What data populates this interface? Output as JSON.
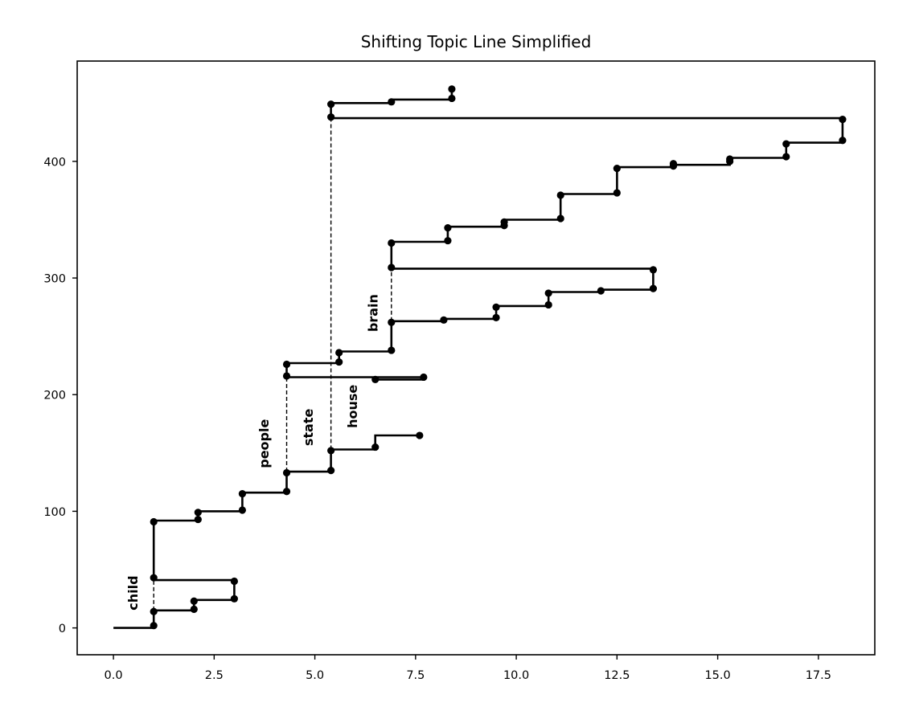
{
  "chart_data": {
    "type": "line",
    "title": "Shifting Topic Line Simplified",
    "xlabel": "",
    "ylabel": "",
    "xlim": [
      -0.9,
      18.9
    ],
    "ylim": [
      -23,
      486
    ],
    "x_ticks": [
      0.0,
      2.5,
      5.0,
      7.5,
      10.0,
      12.5,
      15.0,
      17.5
    ],
    "x_tick_labels": [
      "0.0",
      "2.5",
      "5.0",
      "7.5",
      "10.0",
      "12.5",
      "15.0",
      "17.5"
    ],
    "y_ticks": [
      0,
      100,
      200,
      300,
      400
    ],
    "y_tick_labels": [
      "0",
      "100",
      "200",
      "300",
      "400"
    ],
    "grid": false,
    "color": "#000000",
    "series": [
      {
        "x": [
          0.0,
          1.0,
          1.0,
          2.0,
          2.0,
          3.0,
          3.0
        ],
        "y": [
          0,
          0,
          15,
          15,
          24,
          24,
          41
        ]
      },
      {
        "x": [
          3.0,
          1.0,
          1.0,
          2.1,
          2.1,
          3.2,
          3.2,
          4.3,
          4.3,
          5.4,
          5.4,
          6.5,
          6.5,
          7.6
        ],
        "y": [
          41,
          41,
          92,
          92,
          100,
          100,
          116,
          116,
          134,
          134,
          153,
          153,
          165,
          165
        ]
      },
      {
        "x": [
          6.5,
          7.7,
          7.7,
          4.3,
          4.3,
          5.6,
          5.6,
          6.9,
          6.9,
          8.2,
          8.2,
          9.5,
          9.5,
          10.8,
          10.8,
          12.1,
          12.1,
          13.4,
          13.4
        ],
        "y": [
          213,
          213,
          215,
          215,
          227,
          227,
          237,
          237,
          263,
          263,
          265,
          265,
          276,
          276,
          288,
          288,
          290,
          290,
          307
        ]
      },
      {
        "x": [
          13.4,
          6.9,
          6.9,
          8.3,
          8.3,
          9.7,
          9.7,
          11.1,
          11.1,
          12.5,
          12.5,
          13.9,
          13.9,
          15.3,
          15.3,
          16.7,
          16.7,
          18.1,
          18.1
        ],
        "y": [
          308,
          308,
          331,
          331,
          344,
          344,
          350,
          350,
          372,
          372,
          395,
          395,
          397,
          397,
          403,
          403,
          416,
          416,
          437
        ]
      },
      {
        "x": [
          18.1,
          5.4,
          5.4,
          6.9,
          6.9,
          8.4,
          8.4
        ],
        "y": [
          437,
          437,
          450,
          450,
          453,
          453,
          463
        ]
      }
    ],
    "points": [
      [
        1.0,
        2
      ],
      [
        1.0,
        14
      ],
      [
        2.0,
        16
      ],
      [
        2.0,
        23
      ],
      [
        3.0,
        25
      ],
      [
        3.0,
        40
      ],
      [
        1.0,
        43
      ],
      [
        1.0,
        91
      ],
      [
        2.1,
        93
      ],
      [
        2.1,
        99
      ],
      [
        3.2,
        101
      ],
      [
        3.2,
        115
      ],
      [
        4.3,
        117
      ],
      [
        4.3,
        133
      ],
      [
        5.4,
        135
      ],
      [
        5.4,
        152
      ],
      [
        6.5,
        155
      ],
      [
        6.5,
        213
      ],
      [
        7.6,
        165
      ],
      [
        7.7,
        215
      ],
      [
        4.3,
        216
      ],
      [
        4.3,
        226
      ],
      [
        5.6,
        228
      ],
      [
        5.6,
        236
      ],
      [
        6.9,
        238
      ],
      [
        6.9,
        262
      ],
      [
        8.2,
        264
      ],
      [
        9.5,
        266
      ],
      [
        9.5,
        275
      ],
      [
        10.8,
        277
      ],
      [
        10.8,
        287
      ],
      [
        12.1,
        289
      ],
      [
        13.4,
        291
      ],
      [
        13.4,
        307
      ],
      [
        6.9,
        309
      ],
      [
        6.9,
        330
      ],
      [
        8.3,
        332
      ],
      [
        8.3,
        343
      ],
      [
        9.7,
        345
      ],
      [
        9.7,
        348
      ],
      [
        11.1,
        351
      ],
      [
        11.1,
        371
      ],
      [
        12.5,
        373
      ],
      [
        12.5,
        394
      ],
      [
        13.9,
        396
      ],
      [
        13.9,
        398
      ],
      [
        15.3,
        400
      ],
      [
        15.3,
        402
      ],
      [
        16.7,
        404
      ],
      [
        16.7,
        415
      ],
      [
        18.1,
        418
      ],
      [
        18.1,
        436
      ],
      [
        5.4,
        438
      ],
      [
        5.4,
        449
      ],
      [
        6.9,
        451
      ],
      [
        8.4,
        454
      ],
      [
        8.4,
        462
      ]
    ],
    "dashed_lines": [
      {
        "x": 1.0,
        "y": [
          15,
          41
        ]
      },
      {
        "x": 4.3,
        "y": [
          134,
          215
        ]
      },
      {
        "x": 5.4,
        "y": [
          153,
          437
        ]
      },
      {
        "x": 6.9,
        "y": [
          263,
          308
        ]
      }
    ],
    "annotations": [
      {
        "text": "child",
        "x": 0.6,
        "y": 30
      },
      {
        "text": "people",
        "x": 3.85,
        "y": 158
      },
      {
        "text": "state",
        "x": 4.95,
        "y": 172
      },
      {
        "text": "house",
        "x": 6.05,
        "y": 190
      },
      {
        "text": "brain",
        "x": 6.55,
        "y": 270
      }
    ]
  }
}
